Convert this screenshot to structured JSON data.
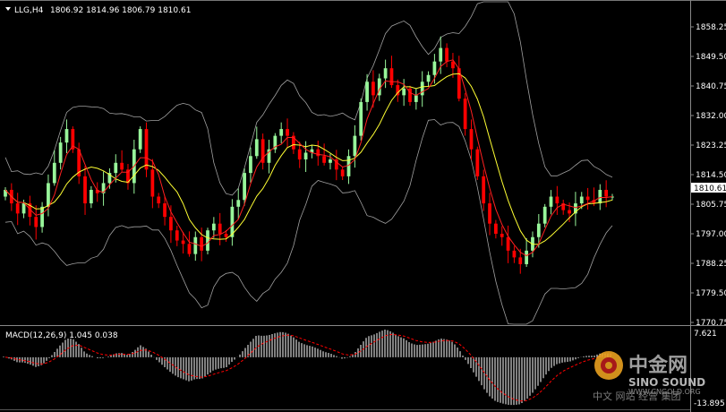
{
  "header": {
    "symbol": "LLG,H4",
    "ohlc": "1806.92 1814.96 1806.79 1810.61",
    "macd_label": "MACD(12,26,9) 1.045 0.038"
  },
  "price_axis": {
    "ticks": [
      "1858.25",
      "1849.50",
      "1840.75",
      "1832.00",
      "1823.25",
      "1814.50",
      "1805.75",
      "1797.00",
      "1788.25",
      "1779.50",
      "1770.75"
    ],
    "current_label": "1810.61"
  },
  "macd_axis": {
    "top_label": "7.621",
    "bottom_label": "-13.895"
  },
  "watermark": {
    "logo_text": "中金网",
    "brand": "SINO SOUND",
    "site": "WWW.CNGOLD.ORG",
    "tagline": "中文 网站 经营 集团"
  },
  "colors": {
    "background": "#000000",
    "bull": "#98f59a",
    "bear": "#ff0000",
    "ma_slow": "#ffff33",
    "ma_fast": "#ff2020",
    "bands": "#a0a0a0",
    "macd_signal": "#ff0000",
    "macd_hist": "#ffffff"
  },
  "chart_data": [
    {
      "type": "candlestick",
      "title": "LLG,H4",
      "ylim": [
        1770.75,
        1858.25
      ],
      "series": [
        {
          "name": "price_path",
          "values": [
            1810,
            1806,
            1803,
            1806,
            1802,
            1799,
            1805,
            1812,
            1818,
            1824,
            1828,
            1822,
            1814,
            1806,
            1810,
            1809,
            1812,
            1815,
            1818,
            1816,
            1812,
            1822,
            1828,
            1816,
            1808,
            1806,
            1802,
            1798,
            1795,
            1794,
            1791,
            1796,
            1792,
            1798,
            1800,
            1797,
            1796,
            1805,
            1807,
            1815,
            1820,
            1825,
            1818,
            1822,
            1826,
            1828,
            1826,
            1822,
            1819,
            1821,
            1822,
            1820,
            1818,
            1819,
            1816,
            1814,
            1820,
            1826,
            1836,
            1842,
            1838,
            1843,
            1846,
            1841,
            1838,
            1840,
            1836,
            1838,
            1842,
            1844,
            1848,
            1852,
            1848,
            1846,
            1837,
            1828,
            1822,
            1814,
            1806,
            1800,
            1797,
            1796,
            1792,
            1790,
            1788,
            1792,
            1796,
            1800,
            1805,
            1808,
            1806,
            1804,
            1803,
            1806,
            1808,
            1807,
            1806,
            1810,
            1808,
            1808
          ]
        }
      ]
    },
    {
      "type": "bar",
      "title": "MACD(12,26,9) 1.045 0.038",
      "ylim": [
        -13.895,
        7.621
      ]
    }
  ]
}
